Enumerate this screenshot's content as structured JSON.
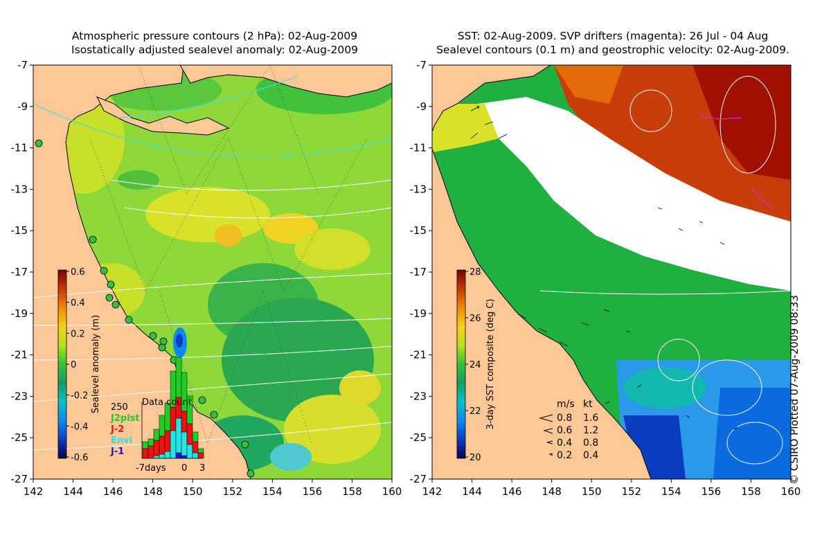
{
  "left_panel": {
    "title_line1": "Atmospheric pressure contours (2 hPa): 02-Aug-2009",
    "title_line2": "Isostatically adjusted sealevel anomaly: 02-Aug-2009",
    "colorbar": {
      "label": "Sealevel anomaly (m)",
      "ticks": [
        "0.6",
        "0.4",
        "0.2",
        "0",
        "-0.2",
        "-0.4",
        "-0.6"
      ],
      "colors": [
        "#7a0000",
        "#c43a00",
        "#ee8a00",
        "#f2d21a",
        "#b4e21e",
        "#34c23a",
        "#10a060",
        "#00c2c8",
        "#0a8cee",
        "#0a3cc2",
        "#08004e"
      ]
    },
    "histogram": {
      "title": "Data count",
      "ymax_label": "250",
      "x_labels": [
        "-7days",
        "0",
        "3"
      ],
      "legend": [
        {
          "name": "J2pist",
          "color": "#22cc22"
        },
        {
          "name": "J-2",
          "color": "#ee1111"
        },
        {
          "name": "Envi",
          "color": "#22e6e6"
        },
        {
          "name": "J-1",
          "color": "#1111ee"
        }
      ]
    }
  },
  "right_panel": {
    "title_line1": "SST: 02-Aug-2009. SVP drifters (magenta): 26 Jul - 04 Aug",
    "title_line2": "Sealevel contours (0.1 m) and geostrophic velocity: 02-Aug-2009.",
    "colorbar": {
      "label": "3-day SST composite (deg C)",
      "ticks": [
        "28",
        "26",
        "24",
        "22",
        "20"
      ],
      "colors": [
        "#7a0000",
        "#c43a00",
        "#ee8a00",
        "#f2d21a",
        "#b4e21e",
        "#34c23a",
        "#10a060",
        "#00c2c8",
        "#0a8cee",
        "#0a3cc2",
        "#08004e"
      ]
    },
    "velocity_legend": {
      "header_ms": "m/s",
      "header_kt": "kt",
      "rows": [
        {
          "ms": "0.8",
          "kt": "1.6"
        },
        {
          "ms": "0.6",
          "kt": "1.2"
        },
        {
          "ms": "0.4",
          "kt": "0.8"
        },
        {
          "ms": "0.2",
          "kt": "0.4"
        }
      ]
    }
  },
  "axes": {
    "lon_labels": [
      "142",
      "144",
      "146",
      "148",
      "150",
      "152",
      "154",
      "156",
      "158",
      "160"
    ],
    "lat_labels": [
      "-7",
      "-9",
      "-11",
      "-13",
      "-15",
      "-17",
      "-19",
      "-21",
      "-23",
      "-25",
      "-27"
    ]
  },
  "copyright": "© CSIRO Plotted 07-Aug-2009 08:33",
  "colors": {
    "land": "#fcc896",
    "cloud": "#ffffff",
    "coast": "#000000",
    "contour": "#ffffff",
    "pressure_contour": "#40e0e0",
    "drifter": "#e020e0"
  }
}
